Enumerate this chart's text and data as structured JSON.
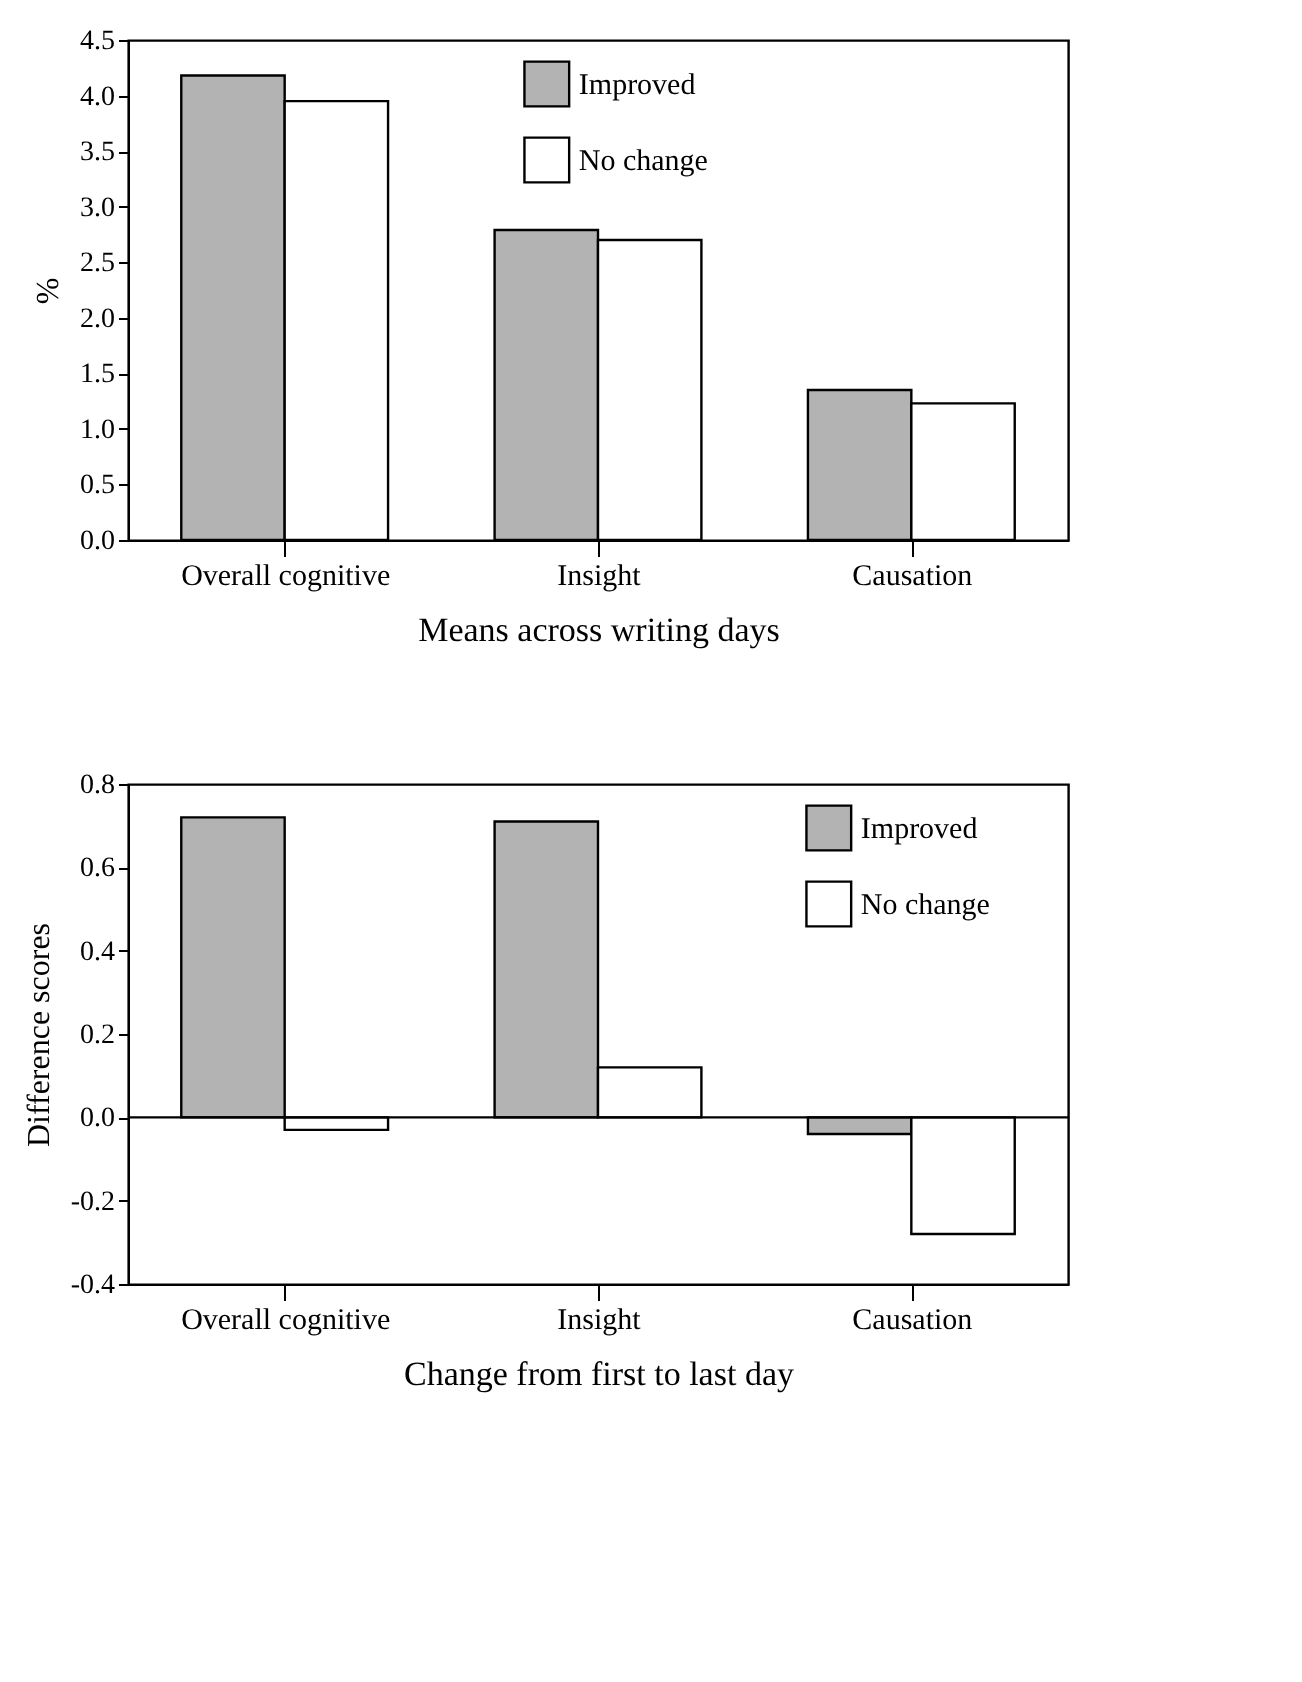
{
  "chart_data": [
    {
      "type": "bar",
      "categories": [
        "Overall cognitive",
        "Insight",
        "Causation"
      ],
      "xlabel": "Means across writing days",
      "ylabel": "%",
      "ylim": [
        0,
        4.5
      ],
      "yticks": [
        {
          "value": 0,
          "label": "0.0"
        },
        {
          "value": 0.5,
          "label": "0.5"
        },
        {
          "value": 1,
          "label": "1.0"
        },
        {
          "value": 1.5,
          "label": "1.5"
        },
        {
          "value": 2,
          "label": "2.0"
        },
        {
          "value": 2.5,
          "label": "2.5"
        },
        {
          "value": 3,
          "label": "3.0"
        },
        {
          "value": 3.5,
          "label": "3.5"
        },
        {
          "value": 4,
          "label": "4.0"
        },
        {
          "value": 4.5,
          "label": "4.5"
        }
      ],
      "series": [
        {
          "name": "Improved",
          "color": "#b3b3b3",
          "values": [
            4.18,
            2.79,
            1.35
          ]
        },
        {
          "name": "No change",
          "color": "#ffffff",
          "values": [
            3.95,
            2.7,
            1.23
          ]
        }
      ],
      "legend": "top",
      "grid": false
    },
    {
      "type": "bar",
      "categories": [
        "Overall cognitive",
        "Insight",
        "Causation"
      ],
      "xlabel": "Change from first to last day",
      "ylabel": "Difference scores",
      "ylim": [
        -0.4,
        0.8
      ],
      "yticks": [
        {
          "value": -0.4,
          "label": "-0.4"
        },
        {
          "value": -0.2,
          "label": "-0.2"
        },
        {
          "value": 0,
          "label": "0.0"
        },
        {
          "value": 0.2,
          "label": "0.2"
        },
        {
          "value": 0.4,
          "label": "0.4"
        },
        {
          "value": 0.6,
          "label": "0.6"
        },
        {
          "value": 0.8,
          "label": "0.8"
        }
      ],
      "series": [
        {
          "name": "Improved",
          "color": "#b3b3b3",
          "values": [
            0.72,
            0.71,
            -0.04
          ]
        },
        {
          "name": "No change",
          "color": "#ffffff",
          "values": [
            -0.03,
            0.12,
            -0.28
          ]
        }
      ],
      "ref_lines": [
        {
          "axis": "y",
          "value": 0,
          "color": "#000000"
        }
      ],
      "legend": "top right",
      "grid": false
    }
  ]
}
